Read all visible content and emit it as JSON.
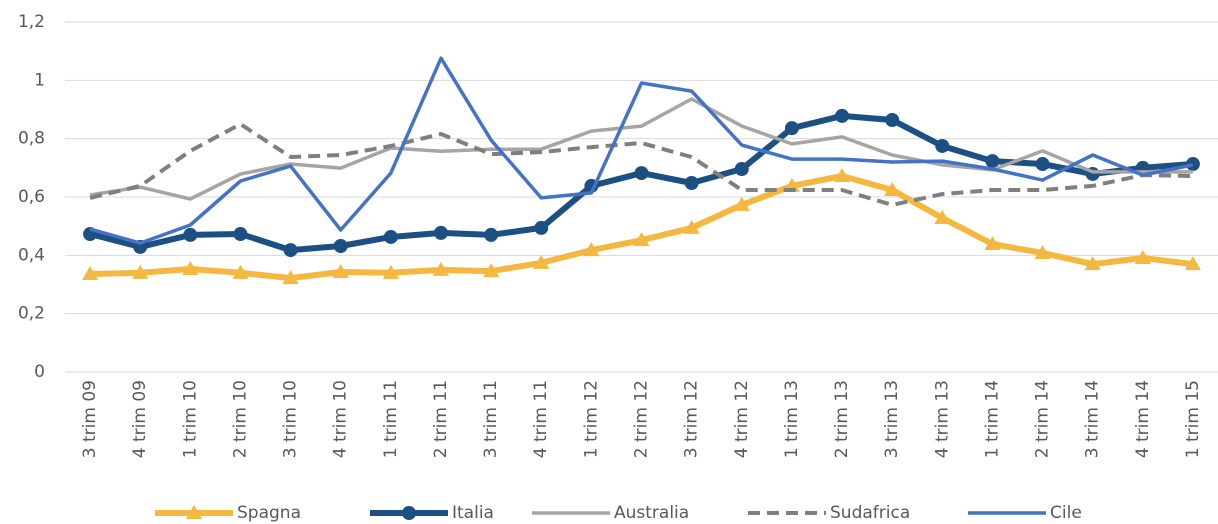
{
  "chart_data": {
    "type": "line",
    "categories": [
      "3 trim 09",
      "4 trim 09",
      "1 trim 10",
      "2  trim 10",
      "3 trim 10",
      "4 trim 10",
      "1 trim 11",
      "2 trim 11",
      "3 trim 11",
      "4 trim 11",
      "1 trim 12",
      "2 trim 12",
      "3 trim 12",
      "4 trim 12",
      "1 trim 13",
      "2 trim 13",
      "3 trim 13",
      "4 trim 13",
      "1 trim 14",
      "2 trim 14",
      "3 trim 14",
      "4 trim 14",
      "1 trim 15"
    ],
    "series": [
      {
        "name": "Spagna",
        "color": "#f4b73f",
        "marker": "triangle",
        "dash": false,
        "values": [
          0.336,
          0.34,
          0.353,
          0.34,
          0.322,
          0.343,
          0.34,
          0.35,
          0.346,
          0.374,
          0.418,
          0.452,
          0.494,
          0.573,
          0.638,
          0.672,
          0.624,
          0.528,
          0.439,
          0.408,
          0.37,
          0.391,
          0.37
        ]
      },
      {
        "name": "Italia",
        "color": "#1c4f82",
        "marker": "circle",
        "dash": false,
        "values": [
          0.473,
          0.429,
          0.47,
          0.473,
          0.418,
          0.432,
          0.463,
          0.477,
          0.47,
          0.494,
          0.638,
          0.682,
          0.648,
          0.696,
          0.836,
          0.878,
          0.864,
          0.775,
          0.723,
          0.713,
          0.679,
          0.7,
          0.713
        ]
      },
      {
        "name": "Australia",
        "color": "#a5a5a5",
        "marker": "none",
        "dash": false,
        "values": [
          0.607,
          0.634,
          0.593,
          0.679,
          0.713,
          0.699,
          0.768,
          0.757,
          0.764,
          0.764,
          0.826,
          0.843,
          0.936,
          0.843,
          0.782,
          0.806,
          0.744,
          0.71,
          0.693,
          0.758,
          0.686,
          0.686,
          0.686
        ]
      },
      {
        "name": "Sudafrica",
        "color": "#7f7f7f",
        "marker": "none",
        "dash": true,
        "values": [
          0.597,
          0.638,
          0.758,
          0.85,
          0.737,
          0.744,
          0.775,
          0.816,
          0.747,
          0.754,
          0.771,
          0.785,
          0.737,
          0.624,
          0.624,
          0.624,
          0.573,
          0.61,
          0.624,
          0.624,
          0.638,
          0.675,
          0.672
        ]
      },
      {
        "name": "Cile",
        "color": "#4472c4",
        "marker": "none",
        "dash": false,
        "values": [
          0.49,
          0.442,
          0.504,
          0.655,
          0.706,
          0.487,
          0.682,
          1.076,
          0.795,
          0.597,
          0.614,
          0.991,
          0.963,
          0.778,
          0.73,
          0.73,
          0.72,
          0.723,
          0.696,
          0.658,
          0.744,
          0.675,
          0.71
        ]
      }
    ],
    "ylim": [
      0,
      1.2
    ],
    "yticks": [
      0,
      {
        "value": 0.2,
        "label": "0,2"
      },
      {
        "value": 0.4,
        "label": "0,4"
      },
      {
        "value": 0.6,
        "label": "0,6"
      },
      {
        "value": 0.8,
        "label": "0,8"
      },
      1,
      {
        "value": 1.2,
        "label": "1,2"
      }
    ],
    "grid": true,
    "legend": "bottom"
  }
}
